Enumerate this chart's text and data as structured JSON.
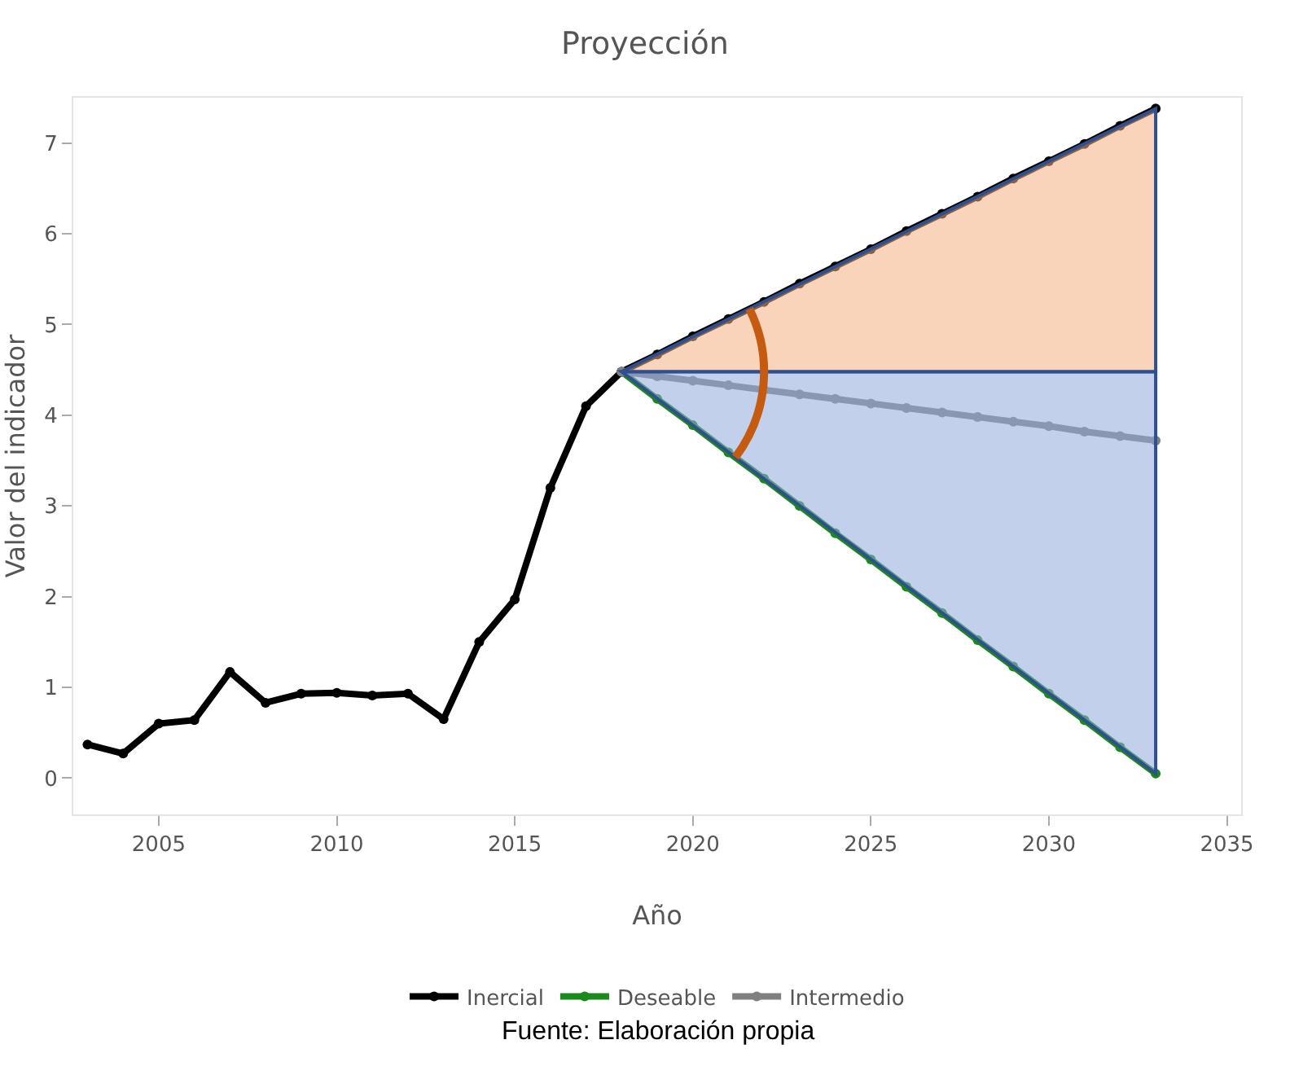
{
  "chart_data": {
    "type": "line",
    "title": "Proyección",
    "xlabel": "Año",
    "ylabel": "Valor del indicador",
    "xlim": [
      2002.6,
      2035.4
    ],
    "xticks": [
      2005,
      2010,
      2015,
      2020,
      2025,
      2030,
      2035
    ],
    "ylim": [
      -0.4,
      7.5
    ],
    "yticks": [
      0,
      1,
      2,
      3,
      4,
      5,
      6,
      7
    ],
    "grid": false,
    "legend": "bottom",
    "marker": "circle",
    "line_style": "solid",
    "series": [
      {
        "name": "Inercial",
        "color": "#000000",
        "x": [
          2003,
          2004,
          2005,
          2006,
          2007,
          2008,
          2009,
          2010,
          2011,
          2012,
          2013,
          2014,
          2015,
          2016,
          2017,
          2018,
          2019,
          2020,
          2021,
          2022,
          2023,
          2024,
          2025,
          2026,
          2027,
          2028,
          2029,
          2030,
          2031,
          2032,
          2033
        ],
        "values": [
          0.37,
          0.27,
          0.6,
          0.64,
          1.17,
          0.83,
          0.93,
          0.94,
          0.91,
          0.93,
          0.65,
          1.5,
          1.97,
          3.2,
          4.1,
          4.48,
          4.67,
          4.87,
          5.06,
          5.25,
          5.45,
          5.64,
          5.83,
          6.03,
          6.22,
          6.41,
          6.61,
          6.8,
          6.99,
          7.19,
          7.38
        ]
      },
      {
        "name": "Deseable",
        "color": "#1a8a1a",
        "x": [
          2018,
          2019,
          2020,
          2021,
          2022,
          2023,
          2024,
          2025,
          2026,
          2027,
          2028,
          2029,
          2030,
          2031,
          2032,
          2033
        ],
        "values": [
          4.48,
          4.18,
          3.89,
          3.59,
          3.3,
          3.0,
          2.7,
          2.41,
          2.11,
          1.82,
          1.52,
          1.23,
          0.93,
          0.64,
          0.34,
          0.05
        ]
      },
      {
        "name": "Intermedio",
        "color": "#808080",
        "x": [
          2018,
          2019,
          2020,
          2021,
          2022,
          2023,
          2024,
          2025,
          2026,
          2027,
          2028,
          2029,
          2030,
          2031,
          2032,
          2033
        ],
        "values": [
          4.48,
          4.43,
          4.38,
          4.33,
          4.28,
          4.23,
          4.18,
          4.13,
          4.08,
          4.03,
          3.98,
          3.93,
          3.88,
          3.82,
          3.77,
          3.72
        ]
      }
    ],
    "annotations": [
      "Fuente: Elaboración propia"
    ]
  }
}
